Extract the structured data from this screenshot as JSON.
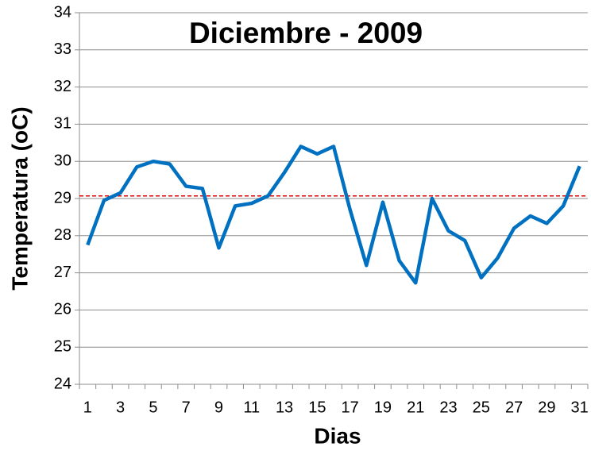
{
  "chart_data": {
    "type": "line",
    "title": "Diciembre - 2009",
    "x_label": "Dias",
    "y_label": "Temperatura (oC)",
    "categories": [
      1,
      null,
      3,
      null,
      5,
      null,
      7,
      null,
      9,
      null,
      11,
      null,
      13,
      null,
      15,
      null,
      17,
      null,
      19,
      null,
      21,
      null,
      23,
      null,
      25,
      null,
      27,
      null,
      29,
      null,
      31
    ],
    "series": [
      {
        "name": "Temperatura",
        "color": "#0070c0",
        "values": [
          27.75,
          28.95,
          29.15,
          29.85,
          30.0,
          29.93,
          29.33,
          29.27,
          27.67,
          28.8,
          28.87,
          29.07,
          29.7,
          30.4,
          30.2,
          30.4,
          28.7,
          27.2,
          28.9,
          27.33,
          26.73,
          29.0,
          28.13,
          27.87,
          26.87,
          27.4,
          28.2,
          28.53,
          28.33,
          28.8,
          29.87
        ]
      }
    ],
    "reference_line": {
      "value": 29.07,
      "color": "#e00000"
    },
    "ylim": [
      24,
      34
    ],
    "yticks": [
      24,
      25,
      26,
      27,
      28,
      29,
      30,
      31,
      32,
      33,
      34
    ],
    "grid": true
  }
}
